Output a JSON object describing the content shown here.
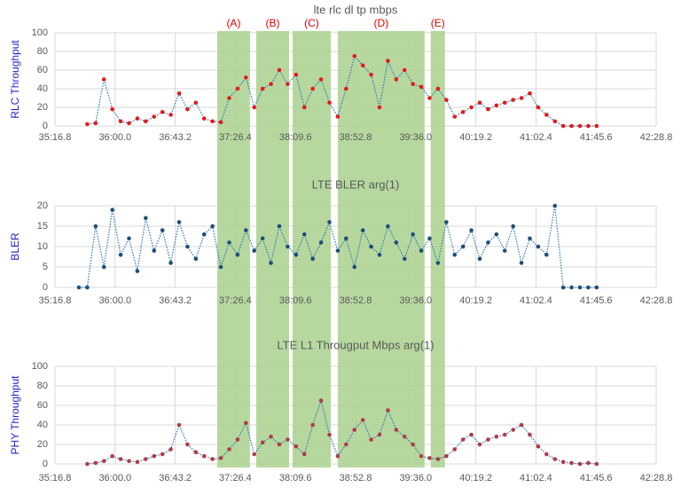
{
  "regions": [
    {
      "label": "(A)",
      "x": [
        2233.4,
        2256.9
      ]
    },
    {
      "label": "(B)",
      "x": [
        2261.4,
        2285
      ]
    },
    {
      "label": "(C)",
      "x": [
        2287.5,
        2315
      ]
    },
    {
      "label": "(D)",
      "x": [
        2320,
        2382.4
      ]
    },
    {
      "label": "(E)",
      "x": [
        2386.8,
        2397
      ]
    }
  ],
  "region_color": "#a9d18e",
  "region_label_color": "#e00000",
  "chart_data": [
    {
      "type": "line",
      "title": "lte rlc dl tp mbps",
      "y_label": "RLC Throughput",
      "color": "#e31a1c",
      "line_color": "#2e75b6",
      "grid": true,
      "xlim": [
        2116.8,
        2548.8
      ],
      "xticks": [
        {
          "value": 2116.8,
          "label": "35:16.8"
        },
        {
          "value": 2160,
          "label": "36:00.0"
        },
        {
          "value": 2203.2,
          "label": "36:43.2"
        },
        {
          "value": 2246.4,
          "label": "37:26.4"
        },
        {
          "value": 2289.6,
          "label": "38:09.6"
        },
        {
          "value": 2332.8,
          "label": "38:52.8"
        },
        {
          "value": 2376,
          "label": "39:36.0"
        },
        {
          "value": 2419.2,
          "label": "40:19.2"
        },
        {
          "value": 2462.4,
          "label": "41:02.4"
        },
        {
          "value": 2505.6,
          "label": "41:45.6"
        },
        {
          "value": 2548.8,
          "label": "42:28.8"
        }
      ],
      "ylim": [
        0,
        100
      ],
      "yticks": [
        0,
        20,
        40,
        60,
        80,
        100
      ],
      "x": [
        2140,
        2146,
        2152,
        2158,
        2164,
        2170,
        2176,
        2182,
        2188,
        2194,
        2200,
        2206,
        2212,
        2218,
        2224,
        2230,
        2236,
        2242,
        2248,
        2254,
        2260,
        2266,
        2272,
        2278,
        2284,
        2290,
        2296,
        2302,
        2308,
        2314,
        2320,
        2326,
        2332,
        2338,
        2344,
        2350,
        2356,
        2362,
        2368,
        2374,
        2380,
        2386,
        2392,
        2398,
        2404,
        2410,
        2416,
        2422,
        2428,
        2434,
        2440,
        2446,
        2452,
        2458,
        2464,
        2470,
        2476,
        2482,
        2488,
        2494,
        2500,
        2506
      ],
      "values": [
        2,
        3,
        50,
        18,
        5,
        3,
        8,
        5,
        10,
        15,
        12,
        35,
        18,
        25,
        8,
        5,
        4,
        30,
        40,
        52,
        20,
        40,
        45,
        60,
        45,
        55,
        20,
        40,
        50,
        25,
        10,
        40,
        75,
        65,
        55,
        20,
        70,
        50,
        60,
        45,
        42,
        30,
        40,
        28,
        10,
        15,
        20,
        25,
        18,
        22,
        25,
        28,
        30,
        35,
        20,
        12,
        5,
        0,
        0,
        0,
        0,
        0
      ]
    },
    {
      "type": "line",
      "title": "LTE BLER arg(1)",
      "y_label": "BLER",
      "color": "#1f4e79",
      "line_color": "#2e75b6",
      "grid": true,
      "xlim": [
        2116.8,
        2548.8
      ],
      "xticks": [
        {
          "value": 2116.8,
          "label": "35:16.8"
        },
        {
          "value": 2160,
          "label": "36:00.0"
        },
        {
          "value": 2203.2,
          "label": "36:43.2"
        },
        {
          "value": 2246.4,
          "label": "37:26.4"
        },
        {
          "value": 2289.6,
          "label": "38:09.6"
        },
        {
          "value": 2332.8,
          "label": "38:52.8"
        },
        {
          "value": 2376,
          "label": "39:36.0"
        },
        {
          "value": 2419.2,
          "label": "40:19.2"
        },
        {
          "value": 2462.4,
          "label": "41:02.4"
        },
        {
          "value": 2505.6,
          "label": "41:45.6"
        },
        {
          "value": 2548.8,
          "label": "42:28.8"
        }
      ],
      "ylim": [
        0,
        20
      ],
      "yticks": [
        0,
        5,
        10,
        15,
        20
      ],
      "x": [
        2134,
        2140,
        2146,
        2152,
        2158,
        2164,
        2170,
        2176,
        2182,
        2188,
        2194,
        2200,
        2206,
        2212,
        2218,
        2224,
        2230,
        2236,
        2242,
        2248,
        2254,
        2260,
        2266,
        2272,
        2278,
        2284,
        2290,
        2296,
        2302,
        2308,
        2314,
        2320,
        2326,
        2332,
        2338,
        2344,
        2350,
        2356,
        2362,
        2368,
        2374,
        2380,
        2386,
        2392,
        2398,
        2404,
        2410,
        2416,
        2422,
        2428,
        2434,
        2440,
        2446,
        2452,
        2458,
        2464,
        2470,
        2476,
        2482,
        2488,
        2494,
        2500,
        2506
      ],
      "values": [
        0,
        0,
        15,
        5,
        19,
        8,
        12,
        4,
        17,
        9,
        14,
        6,
        16,
        10,
        7,
        13,
        15,
        5,
        11,
        8,
        14,
        9,
        12,
        6,
        15,
        10,
        8,
        13,
        7,
        11,
        16,
        9,
        12,
        5,
        14,
        10,
        8,
        15,
        11,
        7,
        13,
        9,
        12,
        6,
        16,
        8,
        10,
        14,
        7,
        11,
        13,
        9,
        15,
        6,
        12,
        10,
        8,
        20,
        0,
        0,
        0,
        0,
        0
      ]
    },
    {
      "type": "line",
      "title": "LTE L1 Througput Mbps arg(1)",
      "y_label": "PHY Throughput",
      "color": "#b23a48",
      "line_color": "#2e75b6",
      "grid": true,
      "xlim": [
        2116.8,
        2548.8
      ],
      "xticks": [
        {
          "value": 2116.8,
          "label": "35:16.8"
        },
        {
          "value": 2160,
          "label": "36:00.0"
        },
        {
          "value": 2203.2,
          "label": "36:43.2"
        },
        {
          "value": 2246.4,
          "label": "37:26.4"
        },
        {
          "value": 2289.6,
          "label": "38:09.6"
        },
        {
          "value": 2332.8,
          "label": "38:52.8"
        },
        {
          "value": 2376,
          "label": "39:36.0"
        },
        {
          "value": 2419.2,
          "label": "40:19.2"
        },
        {
          "value": 2462.4,
          "label": "41:02.4"
        },
        {
          "value": 2505.6,
          "label": "41:45.6"
        },
        {
          "value": 2548.8,
          "label": "42:28.8"
        }
      ],
      "ylim": [
        0,
        100
      ],
      "yticks": [
        0,
        20,
        40,
        60,
        80,
        100
      ],
      "x": [
        2140,
        2146,
        2152,
        2158,
        2164,
        2170,
        2176,
        2182,
        2188,
        2194,
        2200,
        2206,
        2212,
        2218,
        2224,
        2230,
        2236,
        2242,
        2248,
        2254,
        2260,
        2266,
        2272,
        2278,
        2284,
        2290,
        2296,
        2302,
        2308,
        2314,
        2320,
        2326,
        2332,
        2338,
        2344,
        2350,
        2356,
        2362,
        2368,
        2374,
        2380,
        2386,
        2392,
        2398,
        2404,
        2410,
        2416,
        2422,
        2428,
        2434,
        2440,
        2446,
        2452,
        2458,
        2464,
        2470,
        2476,
        2482,
        2488,
        2494,
        2500,
        2506
      ],
      "values": [
        0,
        1,
        3,
        8,
        5,
        3,
        2,
        5,
        8,
        10,
        15,
        40,
        20,
        12,
        8,
        5,
        6,
        15,
        25,
        42,
        10,
        22,
        28,
        20,
        25,
        18,
        10,
        40,
        65,
        30,
        8,
        20,
        35,
        45,
        25,
        30,
        55,
        35,
        28,
        20,
        8,
        6,
        5,
        8,
        15,
        25,
        30,
        20,
        25,
        28,
        30,
        35,
        40,
        30,
        18,
        10,
        5,
        2,
        1,
        0,
        1,
        0
      ]
    }
  ]
}
